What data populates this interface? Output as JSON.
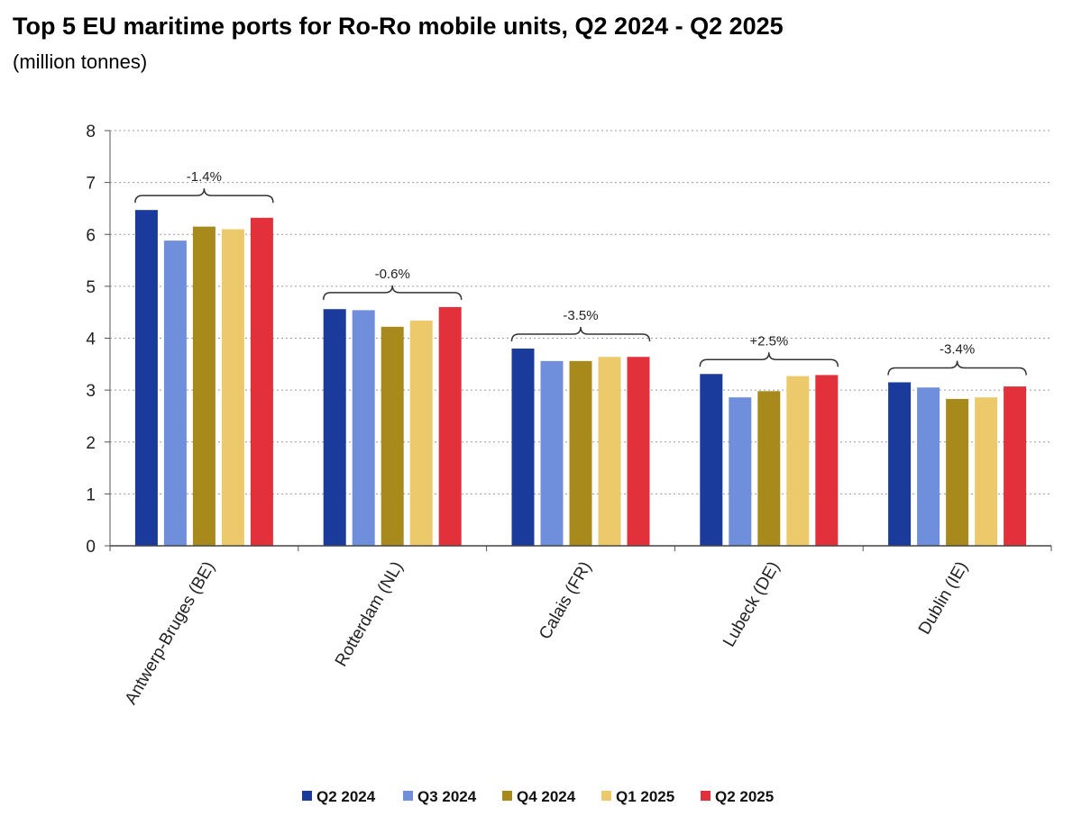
{
  "title": "Top 5 EU maritime ports for Ro-Ro mobile units, Q2 2024 - Q2 2025",
  "subtitle": "(million  tonnes)",
  "chart_data": {
    "type": "bar",
    "title": "Top 5 EU maritime ports for Ro-Ro mobile units, Q2 2024 - Q2 2025",
    "ylabel": "(million tonnes)",
    "ylim": [
      0,
      8
    ],
    "yticks": [
      "0",
      "1",
      "2",
      "3",
      "4",
      "5",
      "6",
      "7",
      "8"
    ],
    "grid": true,
    "legend_position": "bottom",
    "categories": [
      "Antwerp-Bruges (BE)",
      "Rotterdam (NL)",
      "Calais (FR)",
      "Lubeck (DE)",
      "Dublin (IE)"
    ],
    "series": [
      {
        "name": "Q2 2024",
        "color": "#1a3a9c",
        "values": [
          6.47,
          4.56,
          3.8,
          3.31,
          3.15
        ]
      },
      {
        "name": "Q3 2024",
        "color": "#6f8fdc",
        "values": [
          5.88,
          4.54,
          3.56,
          2.86,
          3.05
        ]
      },
      {
        "name": "Q4 2024",
        "color": "#a88a1c",
        "values": [
          6.15,
          4.22,
          3.56,
          2.98,
          2.83
        ]
      },
      {
        "name": "Q1 2025",
        "color": "#ecca6c",
        "values": [
          6.1,
          4.34,
          3.64,
          3.27,
          2.86
        ]
      },
      {
        "name": "Q2 2025",
        "color": "#e2313b",
        "values": [
          6.32,
          4.6,
          3.64,
          3.29,
          3.07
        ]
      }
    ],
    "annotations": [
      "-1.4%",
      "-0.6%",
      "-3.5%",
      "+2.5%",
      "-3.4%"
    ]
  }
}
